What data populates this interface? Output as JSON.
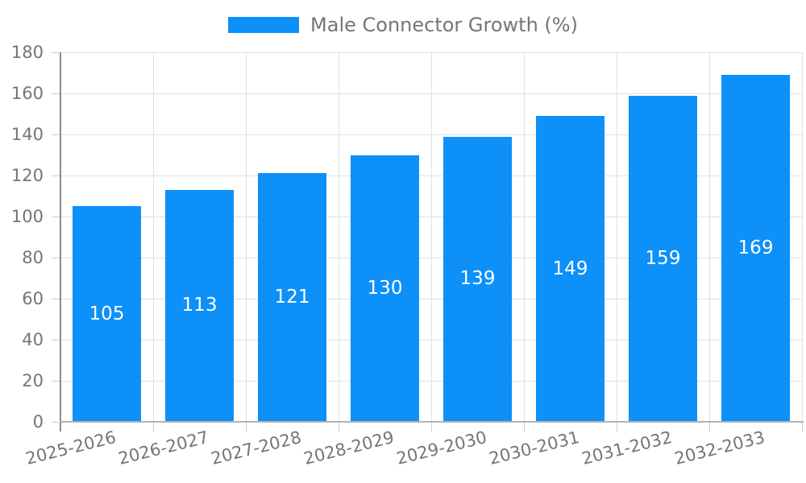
{
  "legend": {
    "label": "Male Connector Growth (%)"
  },
  "chart_data": {
    "type": "bar",
    "title": "Male Connector Growth (%)",
    "categories": [
      "2025-2026",
      "2026-2027",
      "2027-2028",
      "2028-2029",
      "2029-2030",
      "2030-2031",
      "2031-2032",
      "2032-2033"
    ],
    "series": [
      {
        "name": "Male Connector Growth (%)",
        "values": [
          105,
          113,
          121,
          130,
          139,
          149,
          159,
          169
        ]
      }
    ],
    "xlabel": "",
    "ylabel": "",
    "ylim": [
      0,
      180
    ],
    "yticks": [
      0,
      20,
      40,
      60,
      80,
      100,
      120,
      140,
      160,
      180
    ],
    "grid": true,
    "legend_position": "top-center",
    "value_label_position": "inside-center"
  },
  "colors": {
    "bar": "#0e90f9",
    "bar_value_text": "#ffffff",
    "axis_text": "#757575",
    "grid_line": "#e0e0e0",
    "tick_mark": "#cccccc",
    "y_axis_line": "#8c8c8c",
    "x_axis_line": "#b3b3b3",
    "background": "#ffffff"
  }
}
